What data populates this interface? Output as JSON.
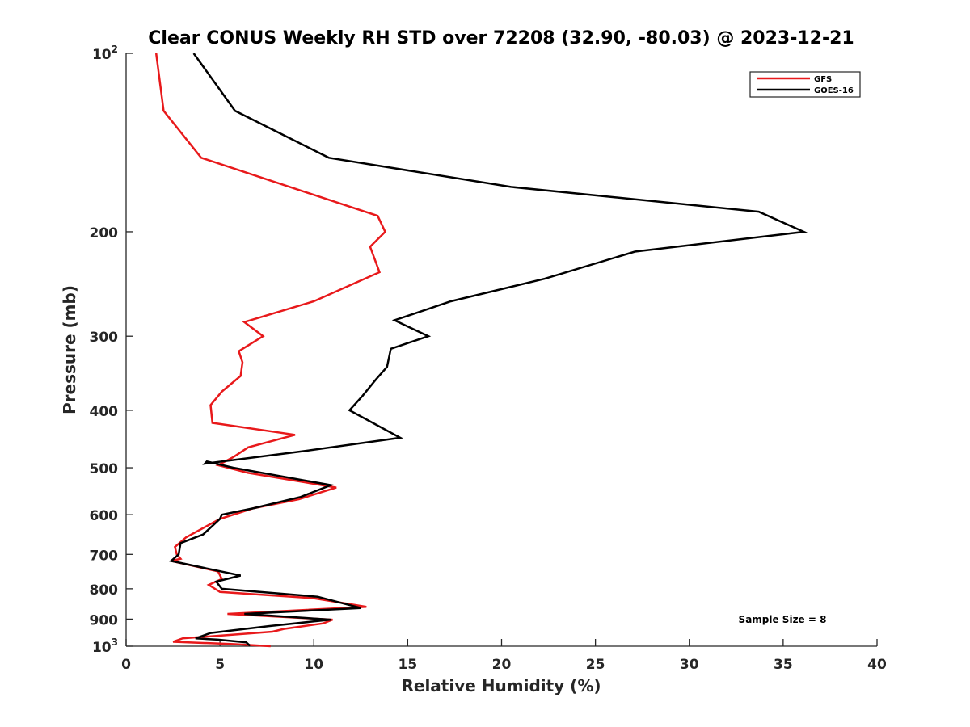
{
  "chart_data": {
    "type": "line",
    "title": "Clear CONUS Weekly RH STD over 72208 (32.90, -80.03) @ 2023-12-21",
    "xlabel": "Relative Humidity (%)",
    "ylabel": "Pressure (mb)",
    "xlim": [
      0,
      40
    ],
    "ylim": [
      100,
      1000
    ],
    "y_scale": "log",
    "y_reversed": true,
    "xticks": [
      "0",
      "5",
      "10",
      "15",
      "20",
      "25",
      "30",
      "35",
      "40"
    ],
    "yticks": [
      {
        "value": 100,
        "base": "10",
        "exp": "2"
      },
      {
        "value": 200,
        "base": "200",
        "exp": ""
      },
      {
        "value": 300,
        "base": "300",
        "exp": ""
      },
      {
        "value": 400,
        "base": "400",
        "exp": ""
      },
      {
        "value": 500,
        "base": "500",
        "exp": ""
      },
      {
        "value": 600,
        "base": "600",
        "exp": ""
      },
      {
        "value": 700,
        "base": "700",
        "exp": ""
      },
      {
        "value": 800,
        "base": "800",
        "exp": ""
      },
      {
        "value": 900,
        "base": "900",
        "exp": ""
      },
      {
        "value": 1000,
        "base": "10",
        "exp": "3"
      }
    ],
    "legend_position": "top-right",
    "annotation": "Sample Size = 8",
    "series": [
      {
        "name": "GFS",
        "color": "#e8191b",
        "points": [
          [
            1.6,
            100
          ],
          [
            2.0,
            125
          ],
          [
            4.0,
            150
          ],
          [
            13.4,
            188
          ],
          [
            13.8,
            200
          ],
          [
            13.0,
            212
          ],
          [
            13.5,
            234
          ],
          [
            10.0,
            262
          ],
          [
            6.3,
            284
          ],
          [
            7.3,
            300
          ],
          [
            6.0,
            318
          ],
          [
            6.2,
            332
          ],
          [
            6.1,
            350
          ],
          [
            5.1,
            372
          ],
          [
            4.5,
            392
          ],
          [
            4.6,
            420
          ],
          [
            9.0,
            440
          ],
          [
            6.5,
            462
          ],
          [
            5.7,
            480
          ],
          [
            4.9,
            495
          ],
          [
            6.5,
            510
          ],
          [
            11.2,
            540
          ],
          [
            9.2,
            565
          ],
          [
            6.8,
            585
          ],
          [
            5.0,
            610
          ],
          [
            3.2,
            655
          ],
          [
            2.6,
            680
          ],
          [
            2.7,
            700
          ],
          [
            2.9,
            712
          ],
          [
            2.4,
            718
          ],
          [
            4.9,
            748
          ],
          [
            5.1,
            770
          ],
          [
            4.4,
            788
          ],
          [
            5.0,
            810
          ],
          [
            10.0,
            830
          ],
          [
            12.8,
            858
          ],
          [
            5.4,
            882
          ],
          [
            11.0,
            902
          ],
          [
            10.5,
            915
          ],
          [
            8.4,
            935
          ],
          [
            7.8,
            945
          ],
          [
            3.0,
            970
          ],
          [
            2.5,
            983
          ],
          [
            5.7,
            992
          ],
          [
            7.7,
            1000
          ]
        ]
      },
      {
        "name": "GOES-16",
        "color": "#000000",
        "points": [
          [
            3.6,
            100
          ],
          [
            5.8,
            125
          ],
          [
            10.8,
            150
          ],
          [
            20.5,
            168
          ],
          [
            33.7,
            185
          ],
          [
            36.1,
            200
          ],
          [
            27.1,
            216
          ],
          [
            22.3,
            240
          ],
          [
            17.3,
            262
          ],
          [
            14.3,
            282
          ],
          [
            16.1,
            300
          ],
          [
            14.1,
            315
          ],
          [
            13.9,
            338
          ],
          [
            13.3,
            355
          ],
          [
            12.6,
            378
          ],
          [
            11.9,
            400
          ],
          [
            14.6,
            445
          ],
          [
            9.2,
            470
          ],
          [
            4.2,
            492
          ],
          [
            4.3,
            488
          ],
          [
            5.7,
            500
          ],
          [
            10.9,
            535
          ],
          [
            9.3,
            560
          ],
          [
            6.8,
            585
          ],
          [
            5.1,
            600
          ],
          [
            5.0,
            610
          ],
          [
            4.1,
            648
          ],
          [
            2.9,
            670
          ],
          [
            2.8,
            700
          ],
          [
            2.4,
            718
          ],
          [
            4.8,
            745
          ],
          [
            6.1,
            760
          ],
          [
            4.8,
            778
          ],
          [
            5.1,
            800
          ],
          [
            10.2,
            825
          ],
          [
            12.5,
            862
          ],
          [
            6.3,
            882
          ],
          [
            10.9,
            902
          ],
          [
            7.6,
            925
          ],
          [
            4.5,
            950
          ],
          [
            3.7,
            970
          ],
          [
            4.9,
            975
          ],
          [
            6.4,
            985
          ],
          [
            6.6,
            998
          ]
        ]
      }
    ]
  }
}
